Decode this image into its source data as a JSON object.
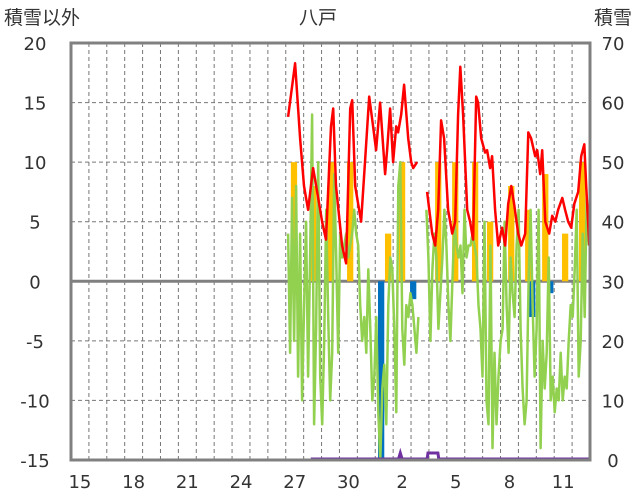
{
  "chart_data": {
    "type": "line",
    "title": "八戸",
    "ylabel_left": "積雪以外",
    "ylabel_right": "積雪",
    "ylim_left": [
      -15,
      20
    ],
    "ylim_right": [
      0,
      70
    ],
    "left_ticks": [
      "20",
      "15",
      "10",
      "5",
      "0",
      "-5",
      "-10",
      "-15"
    ],
    "right_ticks": [
      "70",
      "60",
      "50",
      "40",
      "30",
      "20",
      "10",
      "0"
    ],
    "days": 29,
    "x_tick_labels": [
      {
        "day": 0,
        "label": "15"
      },
      {
        "day": 3,
        "label": "18"
      },
      {
        "day": 6,
        "label": "21"
      },
      {
        "day": 9,
        "label": "24"
      },
      {
        "day": 12,
        "label": "27"
      },
      {
        "day": 15,
        "label": "30"
      },
      {
        "day": 18,
        "label": "2"
      },
      {
        "day": 21,
        "label": "5"
      },
      {
        "day": 24,
        "label": "8"
      },
      {
        "day": 27,
        "label": "11"
      }
    ],
    "grid": true,
    "colors": {
      "red": "#ff0000",
      "green": "#92d050",
      "orange": "#ffc000",
      "blue": "#0070c0",
      "purple": "#7030a0",
      "frame": "#808080"
    },
    "red_series": [
      [
        12.13,
        13.8
      ],
      [
        12.52,
        18.3
      ],
      [
        12.8,
        12
      ],
      [
        13.02,
        8
      ],
      [
        13.25,
        6
      ],
      [
        13.53,
        9.5
      ],
      [
        13.81,
        7
      ],
      [
        14.03,
        5
      ],
      [
        14.25,
        3.5
      ],
      [
        14.53,
        13
      ],
      [
        14.65,
        14.5
      ],
      [
        14.81,
        8
      ],
      [
        15.15,
        3
      ],
      [
        15.37,
        1.5
      ],
      [
        15.6,
        14.5
      ],
      [
        15.71,
        15.2
      ],
      [
        15.88,
        8
      ],
      [
        16.21,
        5
      ],
      [
        16.43,
        10
      ],
      [
        16.66,
        15.5
      ],
      [
        16.88,
        13
      ],
      [
        17.05,
        11
      ],
      [
        17.27,
        15
      ],
      [
        17.55,
        9
      ],
      [
        17.66,
        11
      ],
      [
        17.83,
        14.5
      ],
      [
        18.0,
        10
      ],
      [
        18.17,
        13
      ],
      [
        18.28,
        12.5
      ],
      [
        18.45,
        14
      ],
      [
        18.61,
        16.5
      ],
      [
        18.84,
        12
      ],
      [
        19.01,
        10
      ],
      [
        19.12,
        9.5
      ],
      [
        19.34,
        10
      ],
      null,
      [
        19.9,
        7.5
      ],
      [
        20.18,
        4
      ],
      [
        20.35,
        3
      ],
      [
        20.52,
        6
      ],
      [
        20.68,
        13.5
      ],
      [
        20.85,
        12
      ],
      [
        21.07,
        6
      ],
      [
        21.3,
        4
      ],
      [
        21.47,
        5
      ],
      [
        21.63,
        14
      ],
      [
        21.75,
        18
      ],
      [
        21.91,
        14
      ],
      [
        22.14,
        6
      ],
      [
        22.3,
        5
      ],
      [
        22.47,
        3.5
      ],
      [
        22.64,
        15.5
      ],
      [
        22.75,
        15
      ],
      [
        22.92,
        12
      ],
      [
        23.14,
        10.8
      ],
      [
        23.25,
        11
      ],
      [
        23.42,
        9.5
      ],
      [
        23.53,
        10.5
      ],
      [
        23.7,
        6
      ],
      [
        23.87,
        3
      ],
      [
        24.09,
        4.5
      ],
      [
        24.26,
        3
      ],
      [
        24.43,
        6.5
      ],
      [
        24.6,
        8
      ],
      [
        24.76,
        6.5
      ],
      [
        24.99,
        4
      ],
      [
        25.16,
        3
      ],
      [
        25.38,
        4
      ],
      [
        25.55,
        12.5
      ],
      [
        25.71,
        12
      ],
      [
        25.94,
        10.5
      ],
      [
        26.05,
        11
      ],
      [
        26.22,
        9
      ],
      [
        26.33,
        11
      ],
      [
        26.5,
        5
      ],
      [
        26.72,
        4
      ],
      [
        26.89,
        5.5
      ],
      [
        27.06,
        5
      ],
      [
        27.22,
        6
      ],
      [
        27.45,
        7
      ],
      [
        27.61,
        6
      ],
      [
        27.78,
        5
      ],
      [
        27.95,
        4.5
      ],
      [
        28.12,
        6.5
      ],
      [
        28.34,
        7.5
      ],
      [
        28.51,
        10.5
      ],
      [
        28.68,
        11.5
      ],
      [
        28.79,
        8
      ],
      [
        28.96,
        3
      ]
    ],
    "green_series": {
      "start_day": 12.13,
      "step_day": 0.112,
      "values": [
        4,
        -6,
        7,
        -5,
        8,
        -8,
        4,
        -10,
        -2,
        5,
        -8,
        2,
        14,
        -12,
        -4,
        10,
        -8,
        -12,
        -5,
        6,
        -3,
        -10,
        -6,
        9,
        2,
        -6,
        4,
        2,
        3,
        4,
        2,
        3,
        4,
        6,
        4,
        3,
        -2,
        -5,
        -3,
        -6,
        1,
        -4,
        -10,
        -8,
        -3,
        -11,
        -15,
        -9,
        -7,
        -12,
        -2,
        2,
        1,
        -4,
        -11,
        8,
        10,
        -4,
        -7,
        -2,
        -3,
        -1,
        -2,
        -4,
        -6,
        -3,
        null,
        null,
        null,
        6,
        2,
        -5,
        1,
        4,
        2,
        -4,
        -1,
        2,
        6,
        3,
        -2,
        -5,
        0,
        5,
        3,
        2,
        3,
        -1,
        6,
        2,
        3,
        3,
        4,
        3,
        2,
        -2,
        -4,
        -8,
        5,
        -10,
        -12,
        3,
        -14,
        -6,
        -12,
        -8,
        -5,
        -4,
        5,
        -2,
        -6,
        2,
        -1,
        -3,
        3,
        6,
        -4,
        -9,
        -12,
        -10,
        0,
        6,
        -2,
        -8,
        -4,
        6,
        -14,
        -5,
        -9,
        -6,
        2,
        -10,
        -8,
        -11,
        -9,
        -10,
        -6,
        -10,
        -8,
        -9,
        -5,
        -2,
        -3,
        1,
        6,
        -8,
        -5,
        4,
        -3,
        7,
        3
      ]
    },
    "orange_bars": [
      [
        12.46,
        10
      ],
      [
        13.53,
        8
      ],
      [
        14.53,
        10
      ],
      [
        15.6,
        10
      ],
      [
        17.72,
        4
      ],
      [
        18.5,
        10
      ],
      [
        20.52,
        10
      ],
      [
        21.47,
        10
      ],
      [
        22.58,
        10
      ],
      [
        23.42,
        5
      ],
      [
        24.6,
        8
      ],
      [
        25.55,
        6
      ],
      [
        26.5,
        9
      ],
      [
        27.61,
        4
      ],
      [
        28.56,
        10
      ]
    ],
    "blue_bars": [
      [
        17.33,
        -15
      ],
      [
        19.12,
        -1.5
      ],
      [
        25.77,
        -3
      ],
      [
        26.78,
        -1
      ]
    ],
    "purple_series": [
      [
        13.4,
        0
      ],
      [
        18.3,
        0
      ],
      [
        18.4,
        1
      ],
      [
        18.5,
        0
      ],
      [
        19.9,
        0
      ],
      [
        19.95,
        1
      ],
      [
        20.5,
        1
      ],
      [
        20.55,
        0
      ],
      [
        28.96,
        0
      ]
    ]
  }
}
